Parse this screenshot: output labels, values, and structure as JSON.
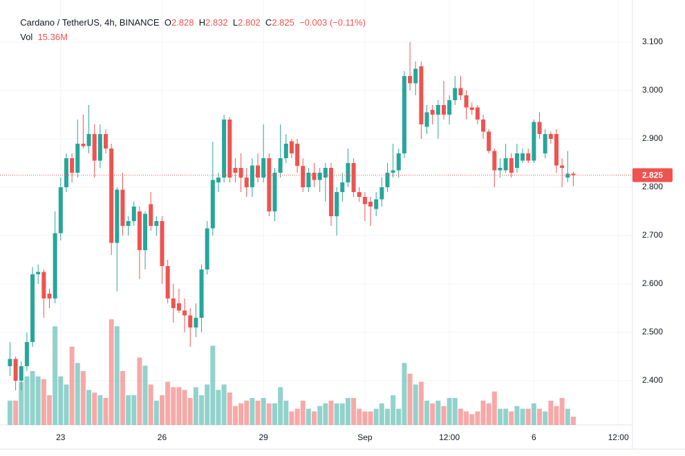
{
  "chart_data": {
    "type": "candlestick",
    "symbol": "Cardano / TetherUS, 4h, BINANCE",
    "ohlc_labels": [
      "O",
      "H",
      "L",
      "C"
    ],
    "change_label": "−0.003 (−0.11%)",
    "up_color": "#26a69a",
    "down_color": "#ef5350",
    "grid": true,
    "ylim": [
      2.3086,
      3.1871
    ],
    "yticks": [
      {
        "value": 2.4,
        "label": "2.400"
      },
      {
        "value": 2.5,
        "label": "2.500"
      },
      {
        "value": 2.6,
        "label": "2.600"
      },
      {
        "value": 2.7,
        "label": "2.700"
      },
      {
        "value": 2.8,
        "label": "2.800"
      },
      {
        "value": 2.9,
        "label": "2.900"
      },
      {
        "value": 3.0,
        "label": "3.000"
      },
      {
        "value": 3.1,
        "label": "3.100"
      }
    ],
    "xlim": [
      -0.3,
      110.5
    ],
    "xticks": [
      {
        "value": 9,
        "label": "23"
      },
      {
        "value": 27,
        "label": "26"
      },
      {
        "value": 45,
        "label": "29"
      },
      {
        "value": 63,
        "label": "Sep"
      },
      {
        "value": 78,
        "label": "12:00"
      },
      {
        "value": 93,
        "label": "6"
      },
      {
        "value": 108,
        "label": "12:00"
      }
    ],
    "open": [
      2.43,
      2.445,
      2.4,
      2.43,
      2.48,
      2.62,
      2.625,
      2.58,
      2.57,
      2.705,
      2.8,
      2.86,
      2.83,
      2.89,
      2.885,
      2.91,
      2.855,
      2.91,
      2.88,
      2.685,
      2.795,
      2.72,
      2.73,
      2.75,
      2.67,
      2.765,
      2.72,
      2.73,
      2.637,
      2.57,
      2.56,
      2.545,
      2.535,
      2.51,
      2.53,
      2.63,
      2.715,
      2.81,
      2.82,
      2.94,
      2.84,
      2.84,
      2.82,
      2.8,
      2.845,
      2.82,
      2.86,
      2.75,
      2.83,
      2.86,
      2.895,
      2.89,
      2.844,
      2.8,
      2.83,
      2.815,
      2.82,
      2.84,
      2.74,
      2.79,
      2.81,
      2.85,
      2.79,
      2.78,
      2.77,
      2.755,
      2.775,
      2.8,
      2.83,
      2.835,
      2.87,
      3.03,
      3.015,
      3.05,
      2.925,
      2.96,
      2.95,
      2.97,
      2.95,
      2.98,
      3.005,
      2.99,
      2.965,
      2.965,
      2.94,
      2.915,
      2.875,
      2.835,
      2.835,
      2.86,
      2.84,
      2.855,
      2.87,
      2.855,
      2.935,
      2.87,
      2.91,
      2.91,
      2.845,
      2.82,
      2.828
    ],
    "high": [
      2.48,
      2.45,
      2.44,
      2.5,
      2.635,
      2.64,
      2.63,
      2.59,
      2.75,
      2.82,
      2.87,
      2.87,
      2.94,
      2.95,
      2.97,
      2.93,
      2.93,
      2.92,
      2.89,
      2.8,
      2.83,
      2.74,
      2.77,
      2.76,
      2.75,
      2.79,
      2.74,
      2.74,
      2.65,
      2.6,
      2.59,
      2.57,
      2.55,
      2.56,
      2.64,
      2.73,
      2.894,
      2.83,
      2.95,
      2.945,
      2.86,
      2.87,
      2.84,
      2.86,
      2.87,
      2.93,
      2.87,
      2.84,
      2.93,
      2.91,
      2.9,
      2.9,
      2.86,
      2.84,
      2.85,
      2.84,
      2.85,
      2.85,
      2.8,
      2.83,
      2.88,
      2.86,
      2.8,
      2.79,
      2.78,
      2.79,
      2.82,
      2.85,
      2.89,
      2.88,
      3.04,
      3.1,
      3.06,
      3.06,
      2.97,
      2.97,
      2.98,
      3.02,
      2.99,
      3.03,
      3.03,
      3.0,
      2.975,
      2.97,
      2.95,
      2.92,
      2.88,
      2.86,
      2.89,
      2.87,
      2.89,
      2.88,
      2.88,
      2.94,
      2.955,
      2.92,
      2.915,
      2.92,
      2.86,
      2.875,
      2.832
    ],
    "low": [
      2.41,
      2.38,
      2.38,
      2.42,
      2.47,
      2.6,
      2.53,
      2.55,
      2.56,
      2.69,
      2.79,
      2.81,
      2.82,
      2.88,
      2.87,
      2.82,
      2.84,
      2.87,
      2.66,
      2.585,
      2.7,
      2.7,
      2.72,
      2.61,
      2.63,
      2.71,
      2.7,
      2.6,
      2.56,
      2.52,
      2.54,
      2.5,
      2.47,
      2.49,
      2.5,
      2.62,
      2.7,
      2.79,
      2.81,
      2.81,
      2.81,
      2.79,
      2.78,
      2.78,
      2.81,
      2.81,
      2.74,
      2.73,
      2.82,
      2.85,
      2.86,
      2.83,
      2.79,
      2.79,
      2.8,
      2.79,
      2.77,
      2.72,
      2.7,
      2.77,
      2.8,
      2.78,
      2.77,
      2.73,
      2.72,
      2.74,
      2.76,
      2.79,
      2.82,
      2.82,
      2.86,
      3.0,
      2.99,
      2.9,
      2.91,
      2.93,
      2.9,
      2.94,
      2.93,
      2.97,
      2.98,
      2.94,
      2.95,
      2.93,
      2.9,
      2.87,
      2.8,
      2.82,
      2.83,
      2.82,
      2.83,
      2.85,
      2.85,
      2.85,
      2.9,
      2.86,
      2.89,
      2.83,
      2.8,
      2.81,
      2.802
    ],
    "close": [
      2.445,
      2.4,
      2.43,
      2.48,
      2.62,
      2.625,
      2.57,
      2.57,
      2.705,
      2.8,
      2.86,
      2.83,
      2.89,
      2.885,
      2.91,
      2.855,
      2.91,
      2.88,
      2.685,
      2.795,
      2.72,
      2.73,
      2.76,
      2.67,
      2.745,
      2.72,
      2.73,
      2.637,
      2.57,
      2.55,
      2.545,
      2.535,
      2.51,
      2.53,
      2.63,
      2.715,
      2.815,
      2.82,
      2.94,
      2.82,
      2.83,
      2.82,
      2.8,
      2.845,
      2.82,
      2.86,
      2.75,
      2.83,
      2.86,
      2.89,
      2.87,
      2.844,
      2.8,
      2.83,
      2.815,
      2.83,
      2.84,
      2.74,
      2.79,
      2.81,
      2.85,
      2.79,
      2.78,
      2.765,
      2.76,
      2.775,
      2.8,
      2.83,
      2.835,
      2.87,
      3.03,
      3.015,
      3.045,
      2.93,
      2.955,
      2.95,
      2.97,
      2.95,
      2.98,
      3.005,
      2.99,
      2.965,
      2.96,
      2.94,
      2.915,
      2.875,
      2.835,
      2.84,
      2.86,
      2.83,
      2.87,
      2.87,
      2.855,
      2.935,
      2.91,
      2.91,
      2.9,
      2.845,
      2.84,
      2.828,
      2.825
    ],
    "volume": {
      "name": "Vol",
      "ylim": [
        0,
        200
      ],
      "values": [
        45,
        45,
        80,
        90,
        100,
        90,
        85,
        55,
        183,
        90,
        75,
        145,
        115,
        100,
        65,
        60,
        55,
        50,
        196,
        183,
        100,
        55,
        55,
        125,
        110,
        75,
        45,
        55,
        80,
        70,
        70,
        65,
        50,
        70,
        55,
        75,
        147,
        65,
        75,
        60,
        35,
        40,
        45,
        50,
        45,
        50,
        40,
        40,
        70,
        45,
        25,
        30,
        45,
        30,
        25,
        35,
        40,
        45,
        40,
        40,
        50,
        50,
        30,
        25,
        25,
        30,
        40,
        30,
        55,
        30,
        115,
        95,
        75,
        80,
        45,
        40,
        45,
        35,
        50,
        50,
        30,
        25,
        20,
        25,
        45,
        40,
        62,
        30,
        30,
        25,
        35,
        30,
        30,
        40,
        30,
        25,
        45,
        35,
        50,
        30,
        15.36
      ],
      "value_labels": {
        "100": "15.36M"
      }
    }
  }
}
